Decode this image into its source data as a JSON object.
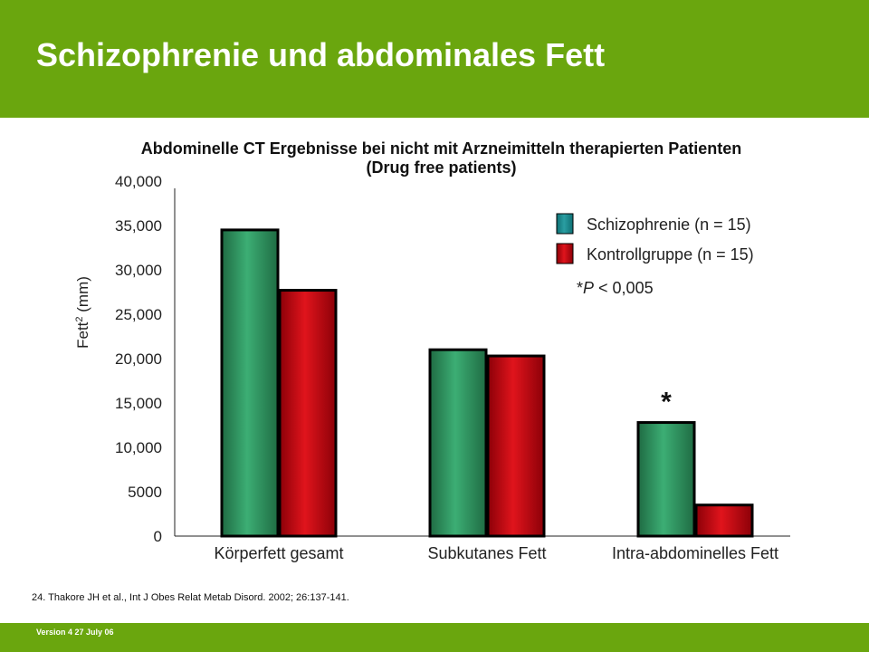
{
  "header": {
    "title": "Schizophrenie und abdominales Fett"
  },
  "chart_data": {
    "type": "bar",
    "title": "Abdominelle CT Ergebnisse bei nicht mit Arzneimitteln therapierten Patienten",
    "subtitle": "(Drug free patients)",
    "ylabel": "Fett",
    "ylabel_sup": "2",
    "ylabel_unit": "(mm)",
    "ylim": [
      0,
      40000
    ],
    "yticks": [
      0,
      5000,
      10000,
      15000,
      20000,
      25000,
      30000,
      35000,
      40000
    ],
    "ytick_labels": [
      "0",
      "5000",
      "10,000",
      "15,000",
      "20,000",
      "25,000",
      "30,000",
      "35,000",
      "40,000"
    ],
    "categories": [
      "Körperfett gesamt",
      "Subkutanes Fett",
      "Intra-abdominelles Fett"
    ],
    "series": [
      {
        "name": "Schizophrenie",
        "legend_label": "Schizophrenie  (n = 15)",
        "color": "#2e8b57",
        "values": [
          34500,
          21000,
          12800
        ]
      },
      {
        "name": "Kontrollgruppe",
        "legend_label": "Kontrollgruppe  (n = 15)",
        "color": "#c0000a",
        "values": [
          27700,
          20300,
          3500
        ]
      }
    ],
    "significance_marker": "*",
    "significance_category_index": 2,
    "annotation": {
      "prefix": "*",
      "italic": "P",
      "rest": " < 0,005"
    },
    "legend_position": "top-right",
    "grid": false
  },
  "citation": "24. Thakore JH et al., Int J Obes Relat Metab Disord. 2002; 26:137-141.",
  "footer": {
    "version": "Version 4 27 July 06"
  }
}
